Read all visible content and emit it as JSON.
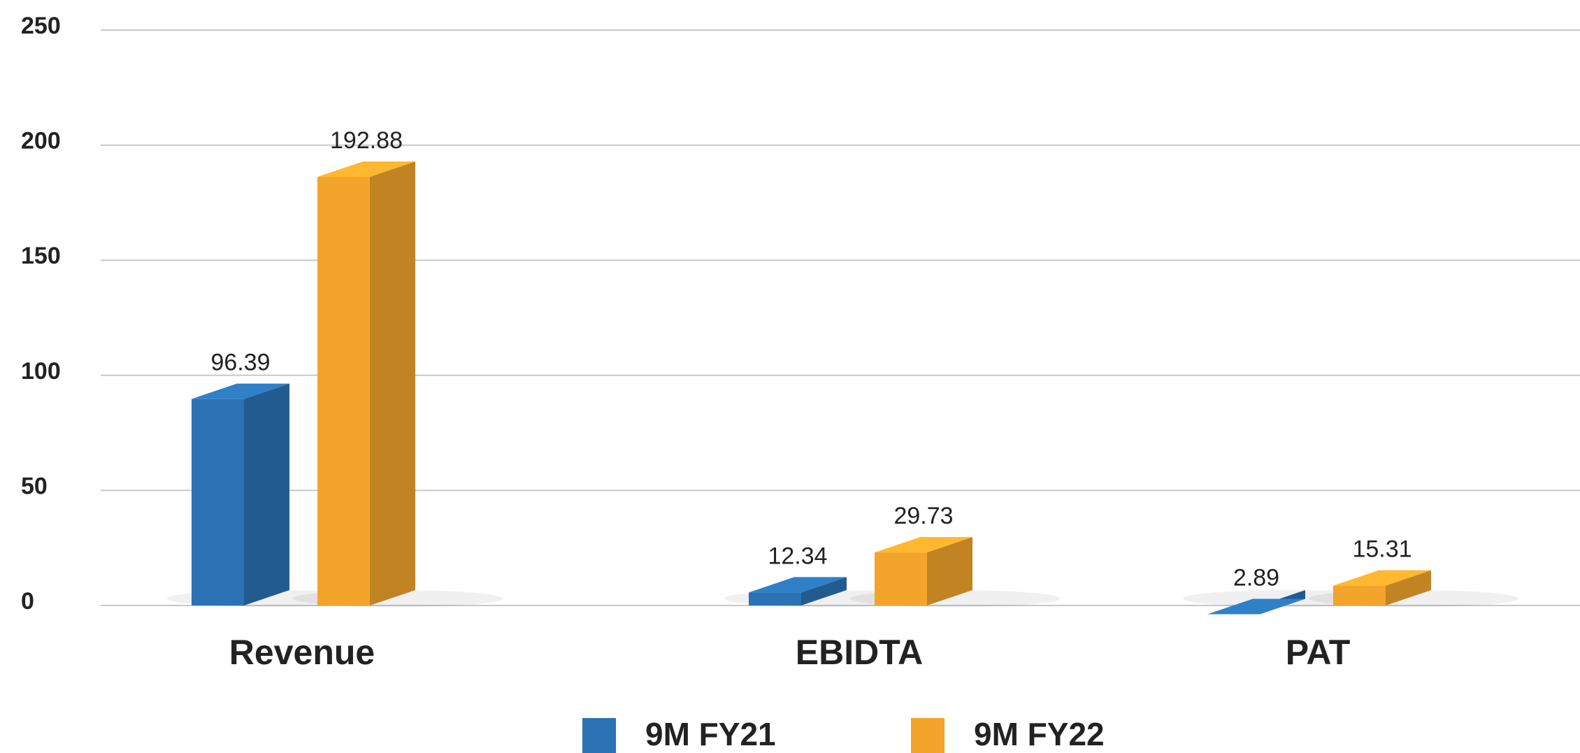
{
  "chart_data": {
    "type": "bar3d",
    "categories": [
      "Revenue",
      "EBIDTA",
      "PAT"
    ],
    "series": [
      {
        "name": "9M FY21",
        "color": "#2a72b3",
        "values": [
          96.39,
          12.34,
          2.89
        ]
      },
      {
        "name": "9M FY22",
        "color": "#f3a42b",
        "values": [
          192.88,
          29.73,
          15.31
        ]
      }
    ],
    "ylim": [
      0,
      250
    ],
    "yticks": [
      0,
      50,
      100,
      150,
      200,
      250
    ],
    "grid": true,
    "legend": "bottom"
  }
}
